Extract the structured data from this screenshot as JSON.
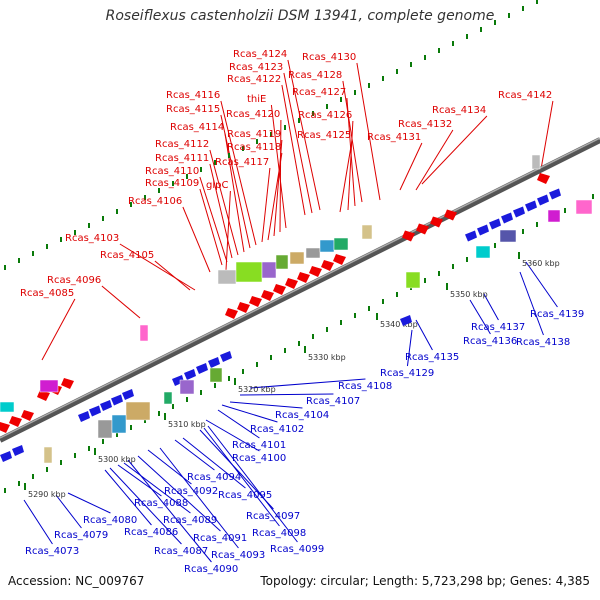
{
  "title": "Roseiflexus castenholzii DSM 13941, complete genome",
  "footer": {
    "accession": "Accession: NC_009767",
    "summary": "Topology: circular; Length: 5,723,298 bp; Genes: 4,385"
  },
  "colors": {
    "forward_label": "#dd0000",
    "reverse_label": "#0000cc",
    "forward_gene": "#ee0000",
    "reverse_gene": "#1a1adc",
    "tick": "#0a7a0a",
    "axis": "#777777"
  },
  "kbp_labels": [
    "5290 kbp",
    "5300 kbp",
    "5310 kbp",
    "5320 kbp",
    "5330 kbp",
    "5340 kbp",
    "5350 kbp",
    "5360 kbp"
  ],
  "forward_genes": [
    "Rcas_4085",
    "Rcas_4096",
    "Rcas_4103",
    "Rcas_4105",
    "Rcas_4106",
    "Rcas_4109",
    "Rcas_4110",
    "Rcas_4111",
    "Rcas_4112",
    "Rcas_4114",
    "Rcas_4115",
    "Rcas_4116",
    "glpC",
    "Rcas_4117",
    "Rcas_4118",
    "Rcas_4119",
    "Rcas_4120",
    "thiE",
    "Rcas_4122",
    "Rcas_4123",
    "Rcas_4124",
    "Rcas_4125",
    "Rcas_4126",
    "Rcas_4127",
    "Rcas_4128",
    "Rcas_4130",
    "Rcas_4131",
    "Rcas_4132",
    "Rcas_4134",
    "Rcas_4142"
  ],
  "reverse_genes": [
    "Rcas_4073",
    "Rcas_4079",
    "Rcas_4080",
    "Rcas_4086",
    "Rcas_4087",
    "Rcas_4088",
    "Rcas_4089",
    "Rcas_4090",
    "Rcas_4091",
    "Rcas_4092",
    "Rcas_4093",
    "Rcas_4094",
    "Rcas_4095",
    "Rcas_4097",
    "Rcas_4098",
    "Rcas_4099",
    "Rcas_4100",
    "Rcas_4101",
    "Rcas_4102",
    "Rcas_4104",
    "Rcas_4107",
    "Rcas_4108",
    "Rcas_4129",
    "Rcas_4135",
    "Rcas_4136",
    "Rcas_4137",
    "Rcas_4138",
    "Rcas_4139"
  ]
}
